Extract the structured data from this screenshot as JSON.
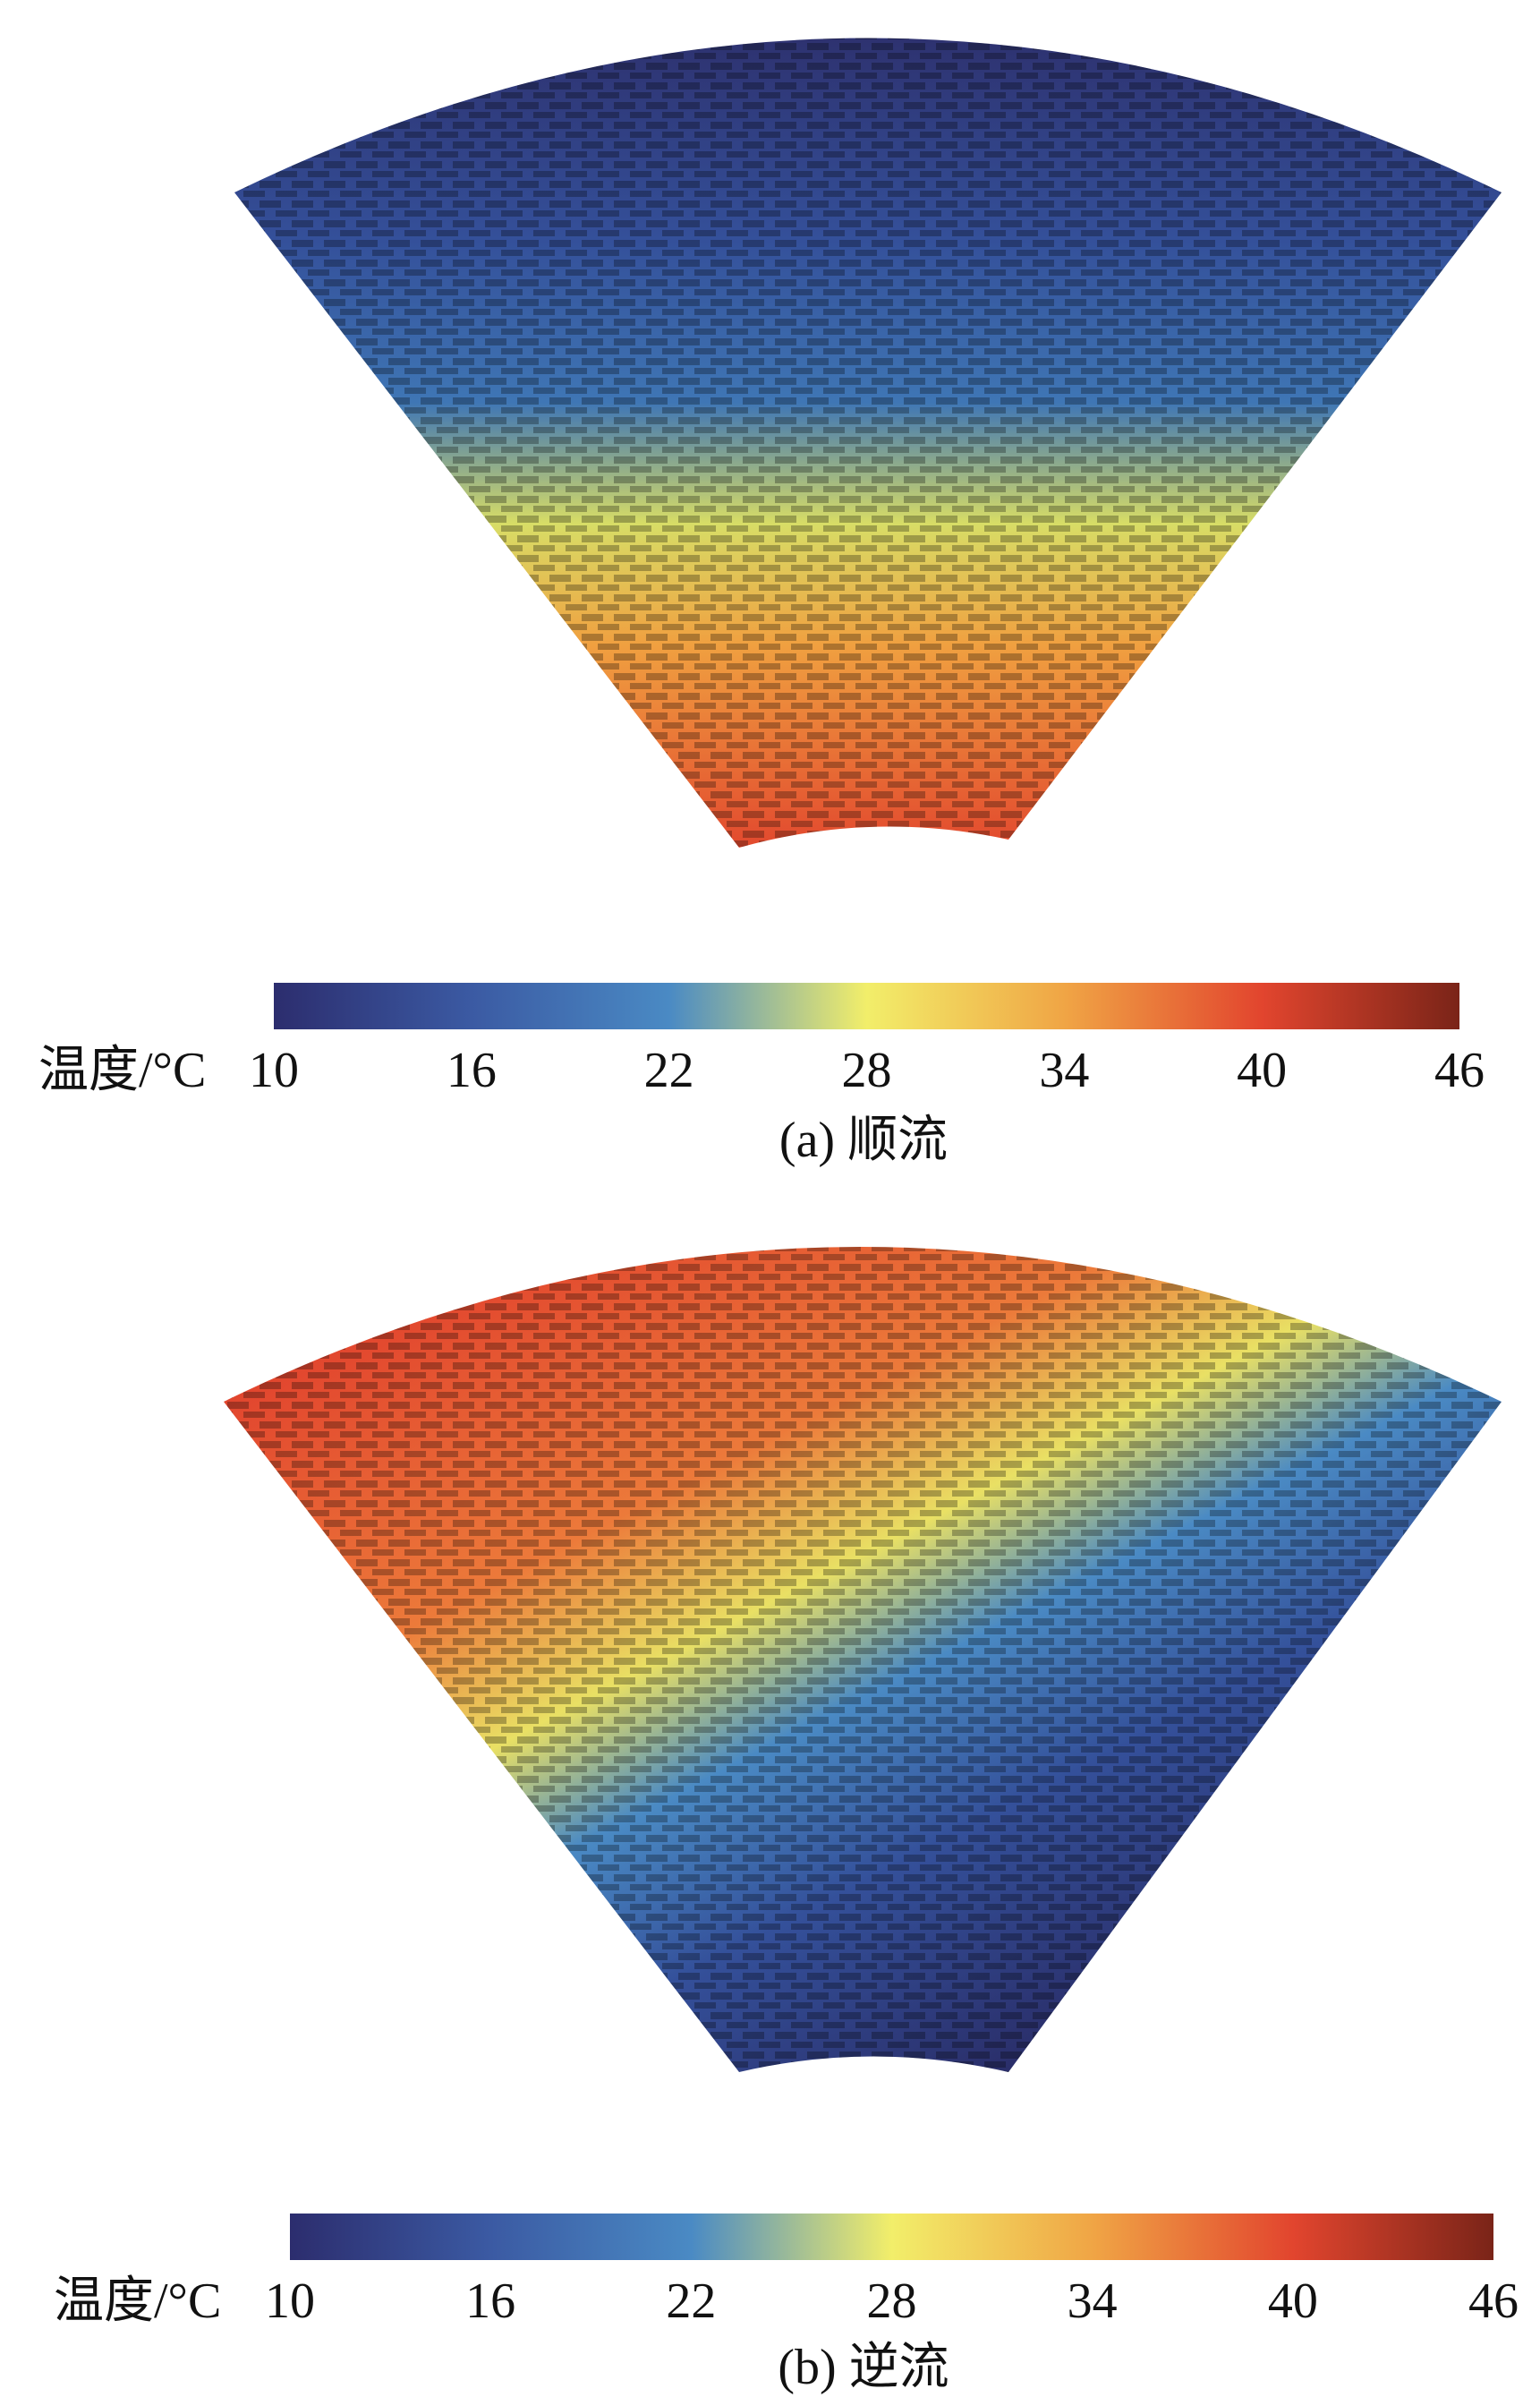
{
  "chart_data": [
    {
      "type": "colorbar",
      "caption": "(a) 顺流",
      "colorbar_label": "温度/°C",
      "clim": [
        10,
        46
      ],
      "cticks": [
        10,
        16,
        22,
        28,
        34,
        40,
        46
      ],
      "colormap": [
        "#2c2d6e",
        "#3b5aa3",
        "#4a8ac4",
        "#f2ee6a",
        "#f0a545",
        "#e2452e",
        "#7a2418"
      ]
    },
    {
      "type": "colorbar",
      "caption": "(b) 逆流",
      "colorbar_label": "温度/°C",
      "clim": [
        10,
        46
      ],
      "cticks": [
        10,
        16,
        22,
        28,
        34,
        40,
        46
      ],
      "colormap": [
        "#2c2d6e",
        "#3b5aa3",
        "#4a8ac4",
        "#f2ee6a",
        "#f0a545",
        "#e2452e",
        "#7a2418"
      ]
    }
  ]
}
